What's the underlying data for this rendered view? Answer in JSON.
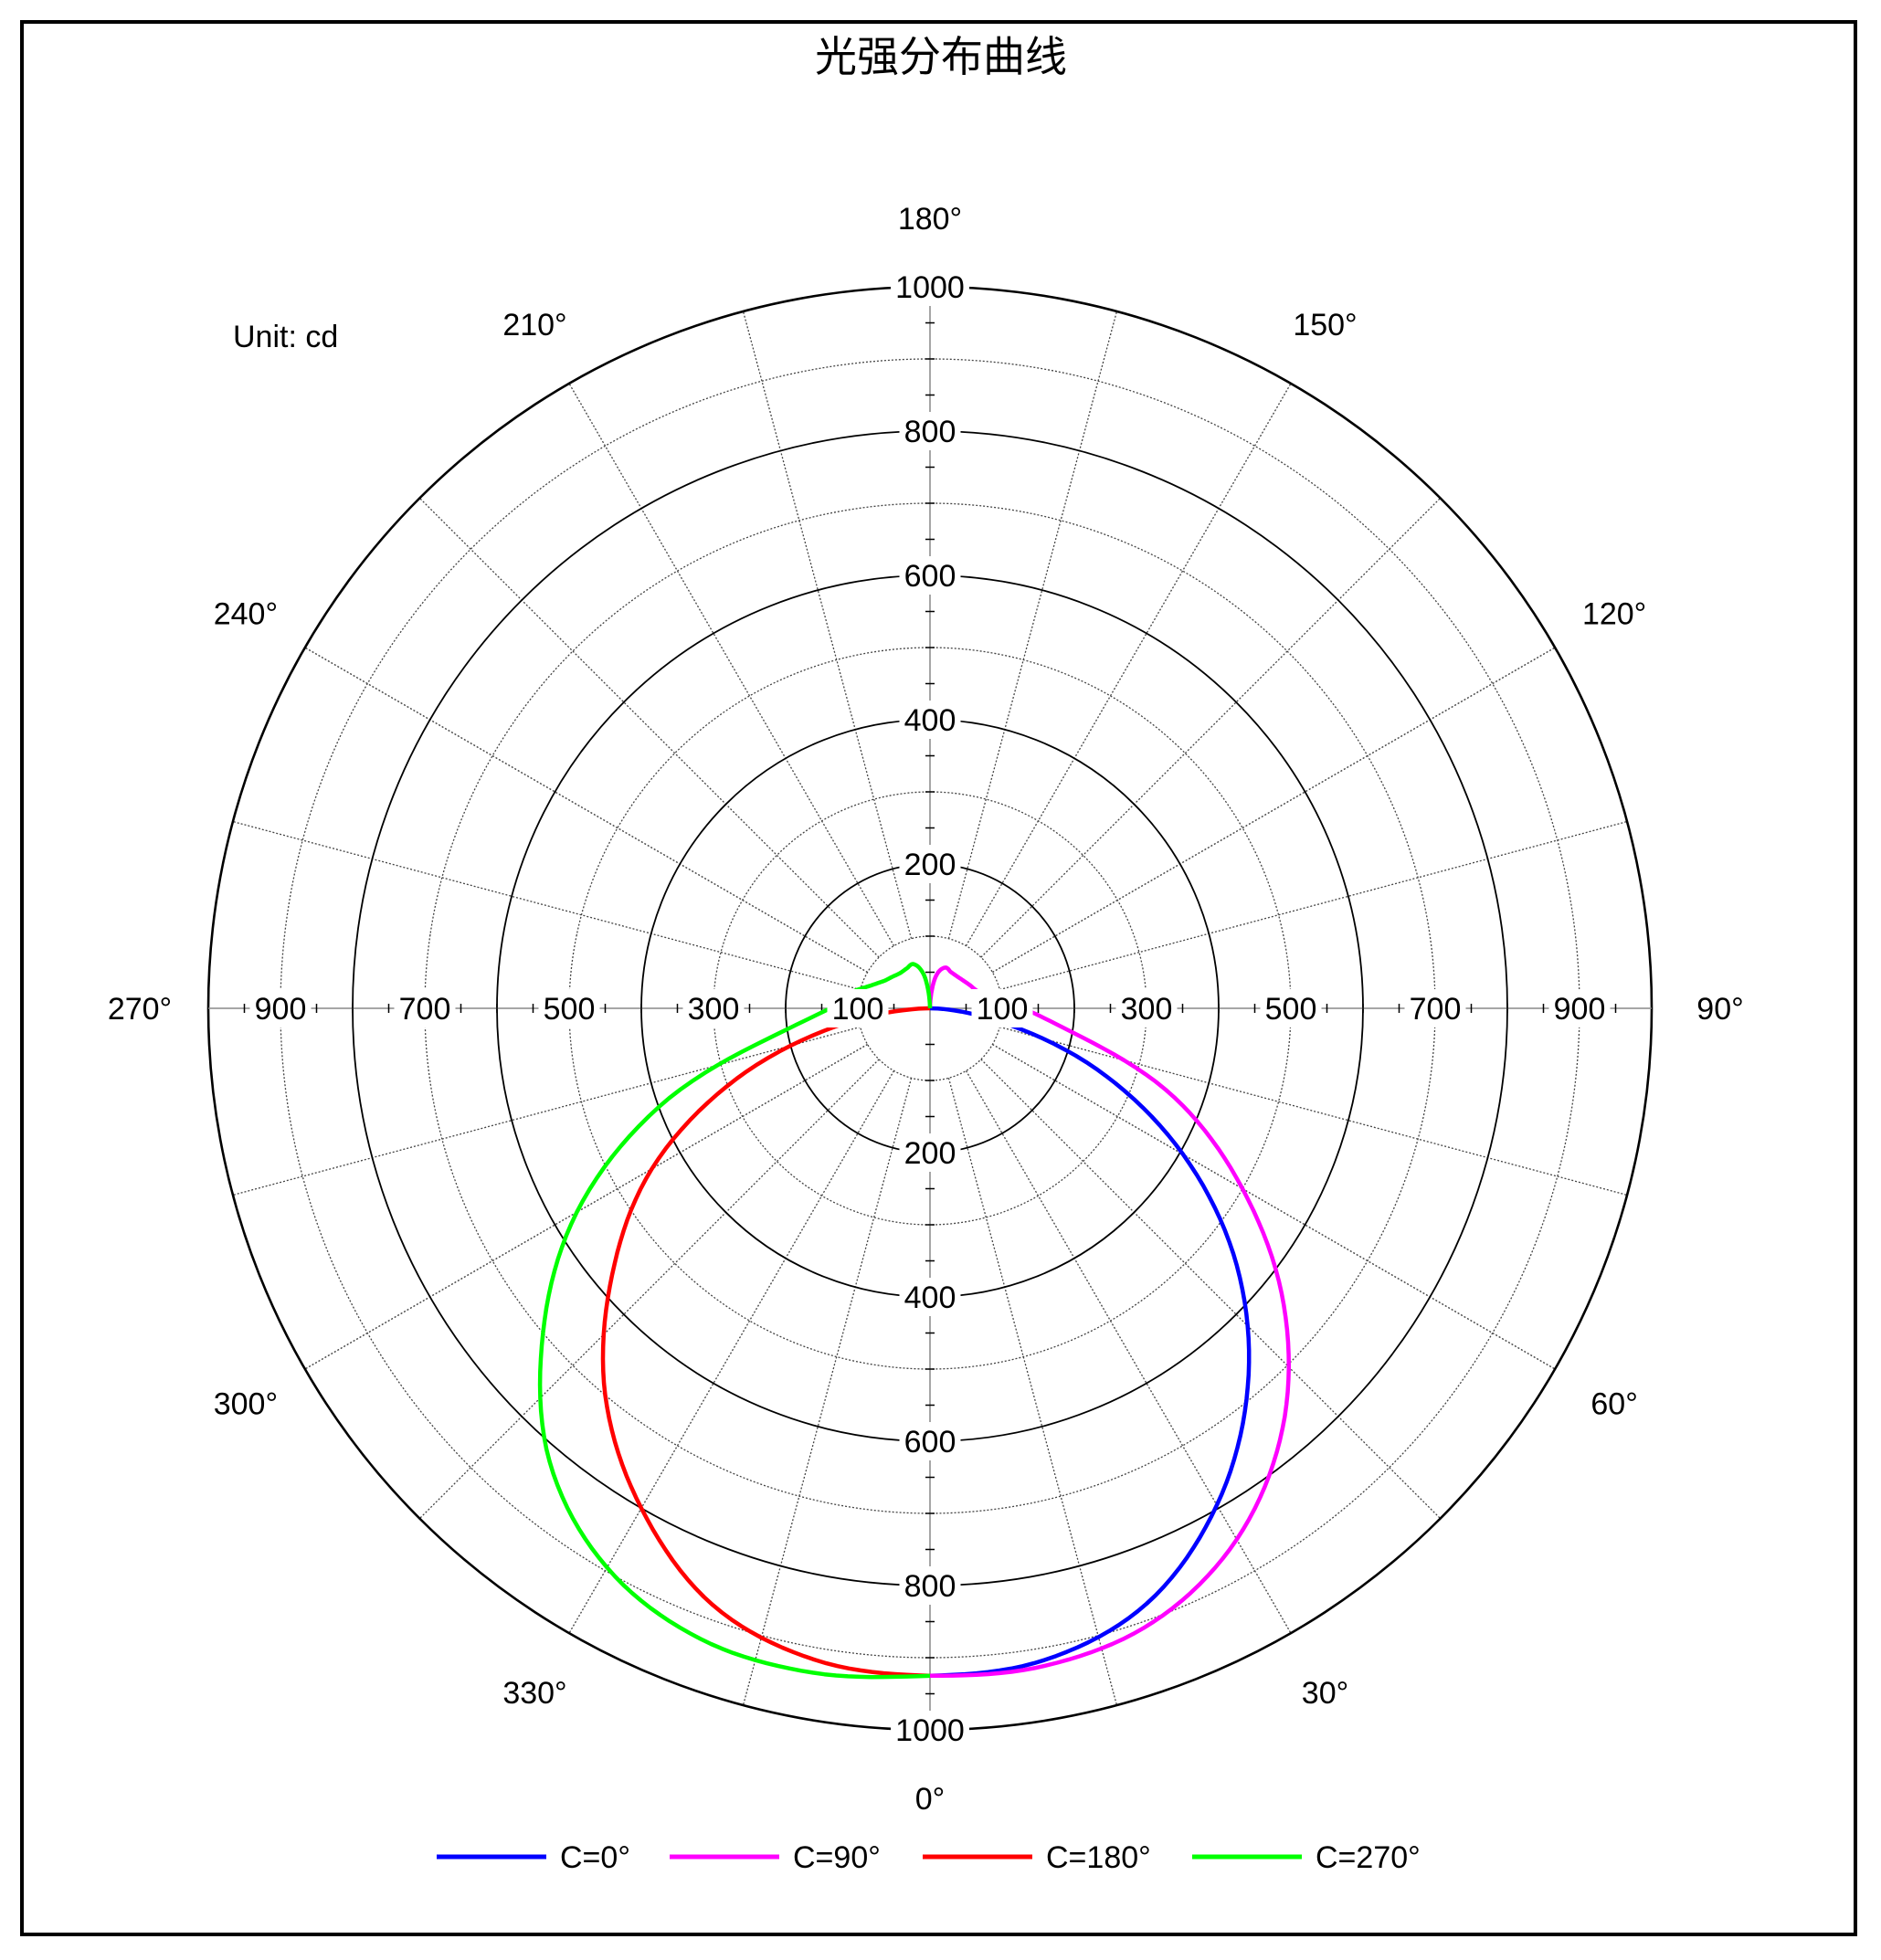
{
  "chart_data": {
    "type": "polar-line",
    "title": "光强分布曲线",
    "unit_label": "Unit: cd",
    "radial_max": 1000,
    "radial_major_ticks": [
      200,
      400,
      600,
      800,
      1000
    ],
    "radial_minor_ticks": [
      100,
      300,
      500,
      700,
      900
    ],
    "angle_labels": [
      "0°",
      "30°",
      "60°",
      "90°",
      "120°",
      "150°",
      "180°",
      "210°",
      "240°",
      "270°",
      "300°",
      "330°"
    ],
    "angle_label_values": [
      0,
      30,
      60,
      90,
      120,
      150,
      180,
      210,
      240,
      270,
      300,
      330
    ],
    "spoke_step_deg": 15,
    "grid": true,
    "legend_position": "bottom",
    "series": [
      {
        "name": "C=0°",
        "color": "#0000ff",
        "side": "right",
        "gamma": [
          0,
          10,
          20,
          30,
          40,
          50,
          60,
          70,
          80,
          90
        ],
        "intensity": [
          925,
          917,
          878,
          795,
          685,
          555,
          405,
          245,
          88,
          0
        ]
      },
      {
        "name": "C=90°",
        "color": "#ff00ff",
        "side": "right",
        "gamma": [
          0,
          10,
          20,
          30,
          40,
          50,
          60,
          70,
          80,
          90,
          100,
          110,
          120,
          130,
          140,
          150,
          160,
          170,
          180
        ],
        "intensity": [
          925,
          925,
          905,
          850,
          760,
          640,
          500,
          360,
          205,
          128,
          85,
          70,
          64,
          60,
          58,
          58,
          60,
          44,
          0
        ]
      },
      {
        "name": "C=180°",
        "color": "#ff0000",
        "side": "left",
        "gamma": [
          0,
          10,
          20,
          30,
          40,
          50,
          60,
          70,
          80,
          90
        ],
        "intensity": [
          925,
          917,
          880,
          800,
          700,
          575,
          445,
          285,
          120,
          0
        ]
      },
      {
        "name": "C=270°",
        "color": "#00ff00",
        "side": "left",
        "gamma": [
          0,
          10,
          20,
          30,
          40,
          50,
          60,
          70,
          80,
          90,
          100,
          110,
          120,
          130,
          140,
          150,
          160,
          170,
          180
        ],
        "intensity": [
          925,
          935,
          930,
          895,
          820,
          700,
          565,
          400,
          220,
          138,
          115,
          90,
          75,
          68,
          64,
          64,
          65,
          46,
          0
        ]
      }
    ]
  }
}
